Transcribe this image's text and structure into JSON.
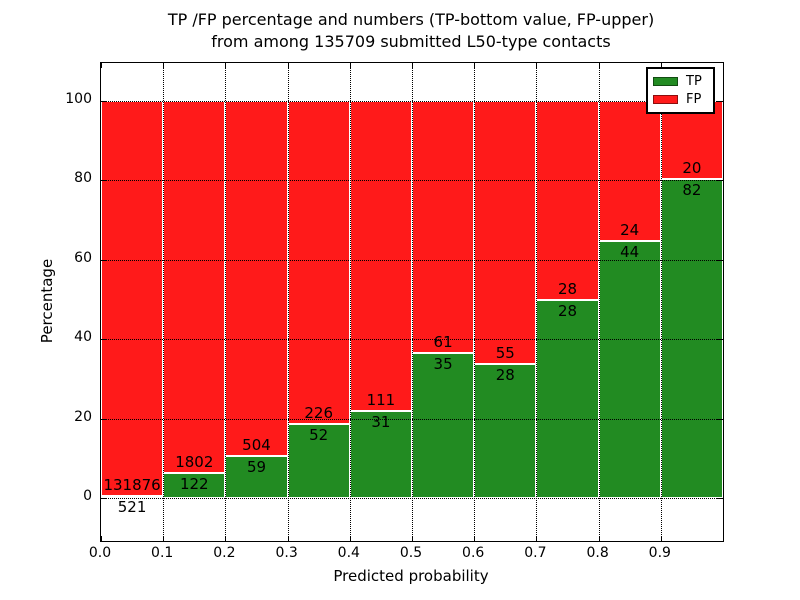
{
  "title": {
    "line1": "TP /FP percentage and numbers (TP-bottom value, FP-upper)",
    "line2": "from among 135709 submitted L50-type contacts"
  },
  "chart_data": {
    "type": "bar",
    "stacked": true,
    "normalized_to_percent": true,
    "title": "TP /FP percentage and numbers (TP-bottom value, FP-upper) from among 135709 submitted L50-type contacts",
    "xlabel": "Predicted probability",
    "ylabel": "Percentage",
    "xlim": [
      0.0,
      1.0
    ],
    "ylim": [
      -10,
      110
    ],
    "grid": "dotted",
    "legend_position": "upper right",
    "x_tick_labels": [
      "0.0",
      "0.1",
      "0.2",
      "0.3",
      "0.4",
      "0.5",
      "0.6",
      "0.7",
      "0.8",
      "0.9"
    ],
    "y_ticks": [
      0,
      20,
      40,
      60,
      80,
      100
    ],
    "bin_edges": [
      0.0,
      0.1,
      0.2,
      0.3,
      0.4,
      0.5,
      0.6,
      0.7,
      0.8,
      0.9,
      1.0
    ],
    "series": [
      {
        "name": "TP",
        "color": "#228b22",
        "counts": [
          521,
          122,
          59,
          52,
          31,
          35,
          28,
          28,
          44,
          82
        ]
      },
      {
        "name": "FP",
        "color": "#ff1a1a",
        "counts": [
          131876,
          1802,
          504,
          226,
          111,
          61,
          55,
          28,
          24,
          20
        ]
      }
    ],
    "tp_percent": [
      0.39,
      6.34,
      10.48,
      18.71,
      21.83,
      36.46,
      33.73,
      50.0,
      64.71,
      80.39
    ],
    "total_contacts": 135709
  }
}
